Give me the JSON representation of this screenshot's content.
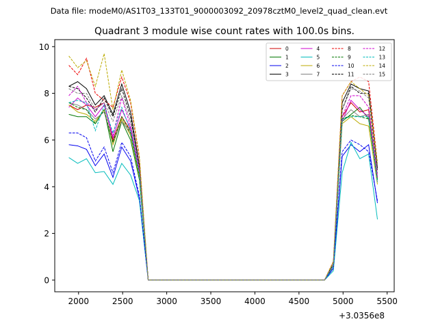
{
  "chart_data": {
    "type": "line",
    "suptitle": "Data file: modeM0/AS1T03_133T01_9000003092_20978cztM0_level2_quad_clean.evt",
    "title": "Quadrant 3 module wise count rates with 100.0s bins.",
    "xlabel": "",
    "ylabel": "",
    "x_offset_label": "+3.0356e8",
    "xlim": [
      1730,
      5580
    ],
    "ylim": [
      -0.5,
      10.3
    ],
    "xticks": [
      2000,
      2500,
      3000,
      3500,
      4000,
      4500,
      5000,
      5500
    ],
    "yticks": [
      0,
      2,
      4,
      6,
      8,
      10
    ],
    "legend_loc": "upper right",
    "legend_ncol": 4,
    "x": [
      1890,
      1990,
      2090,
      2190,
      2290,
      2390,
      2490,
      2590,
      2690,
      2790,
      2890,
      4790,
      4890,
      4990,
      5090,
      5190,
      5290,
      5390
    ],
    "series": [
      {
        "name": "0",
        "color": "#cc0000",
        "dash": "solid",
        "values": [
          7.5,
          7.3,
          7.5,
          7.4,
          7.6,
          6.0,
          7.0,
          6.4,
          4.5,
          0.0,
          0.0,
          0.0,
          0.6,
          7.0,
          7.6,
          7.2,
          7.3,
          4.4
        ]
      },
      {
        "name": "1",
        "color": "#007700",
        "dash": "solid",
        "values": [
          7.1,
          7.0,
          7.0,
          6.7,
          7.3,
          5.5,
          6.8,
          6.0,
          4.3,
          0.0,
          0.0,
          0.0,
          0.6,
          6.8,
          7.1,
          7.4,
          6.9,
          4.3
        ]
      },
      {
        "name": "2",
        "color": "#0000ee",
        "dash": "solid",
        "values": [
          5.8,
          5.75,
          5.6,
          4.9,
          5.4,
          4.4,
          5.7,
          5.1,
          3.5,
          0.0,
          0.0,
          0.0,
          0.5,
          5.3,
          5.8,
          5.5,
          5.8,
          3.3
        ]
      },
      {
        "name": "3",
        "color": "#000000",
        "dash": "solid",
        "values": [
          8.3,
          8.5,
          8.2,
          7.5,
          7.9,
          7.1,
          8.4,
          7.2,
          4.9,
          0.0,
          0.0,
          0.0,
          0.7,
          7.6,
          8.4,
          8.2,
          8.1,
          4.8
        ]
      },
      {
        "name": "4",
        "color": "#cc00cc",
        "dash": "solid",
        "values": [
          7.4,
          7.8,
          7.5,
          7.0,
          7.5,
          6.1,
          7.3,
          6.5,
          4.6,
          0.0,
          0.0,
          0.0,
          0.6,
          6.8,
          7.7,
          7.3,
          7.0,
          4.4
        ]
      },
      {
        "name": "5",
        "color": "#00bbbb",
        "dash": "solid",
        "values": [
          5.25,
          5.0,
          5.2,
          4.6,
          4.65,
          4.1,
          5.0,
          4.5,
          3.4,
          0.0,
          0.0,
          0.0,
          0.4,
          4.6,
          5.9,
          5.2,
          5.4,
          2.6
        ]
      },
      {
        "name": "6",
        "color": "#bbaa00",
        "dash": "solid",
        "values": [
          7.5,
          7.2,
          7.1,
          6.8,
          7.3,
          5.8,
          6.9,
          6.2,
          4.4,
          0.0,
          0.0,
          0.0,
          0.6,
          6.7,
          7.0,
          6.7,
          6.6,
          4.1
        ]
      },
      {
        "name": "7",
        "color": "#808080",
        "dash": "solid",
        "values": [
          7.6,
          7.5,
          7.3,
          6.9,
          7.2,
          5.9,
          6.8,
          6.3,
          4.5,
          0.0,
          0.0,
          0.0,
          0.6,
          6.9,
          7.3,
          7.0,
          7.1,
          4.2
        ]
      },
      {
        "name": "8",
        "color": "#ee0000",
        "dash": "dashed",
        "values": [
          9.2,
          8.8,
          9.5,
          8.0,
          7.7,
          7.4,
          8.7,
          7.6,
          5.2,
          0.0,
          0.0,
          0.0,
          0.8,
          7.9,
          8.5,
          8.7,
          8.5,
          5.0
        ]
      },
      {
        "name": "9",
        "color": "#007700",
        "dash": "dashed",
        "values": [
          7.6,
          7.4,
          7.3,
          6.7,
          7.3,
          5.9,
          7.0,
          6.3,
          4.5,
          0.0,
          0.0,
          0.0,
          0.6,
          6.9,
          7.05,
          7.0,
          6.9,
          4.3
        ]
      },
      {
        "name": "10",
        "color": "#0000ee",
        "dash": "dashed",
        "values": [
          6.3,
          6.3,
          6.1,
          5.1,
          5.7,
          4.6,
          5.9,
          5.3,
          3.6,
          0.0,
          0.0,
          0.0,
          0.5,
          5.5,
          6.0,
          5.8,
          5.5,
          3.4
        ]
      },
      {
        "name": "11",
        "color": "#000000",
        "dash": "dashed",
        "values": [
          8.3,
          8.2,
          7.8,
          7.2,
          7.8,
          7.0,
          8.2,
          7.0,
          4.8,
          0.0,
          0.0,
          0.0,
          0.7,
          7.3,
          8.3,
          8.0,
          8.0,
          4.7
        ]
      },
      {
        "name": "12",
        "color": "#cc00cc",
        "dash": "dashed",
        "values": [
          7.9,
          8.3,
          7.6,
          7.3,
          7.6,
          6.2,
          7.8,
          6.6,
          4.7,
          0.0,
          0.0,
          0.0,
          0.6,
          7.0,
          7.9,
          7.9,
          7.4,
          4.5
        ]
      },
      {
        "name": "13",
        "color": "#00bbbb",
        "dash": "dashed",
        "values": [
          7.6,
          7.7,
          7.6,
          6.4,
          7.5,
          6.3,
          7.4,
          6.4,
          4.5,
          0.0,
          0.0,
          0.0,
          0.6,
          6.9,
          7.0,
          7.0,
          7.0,
          4.2
        ]
      },
      {
        "name": "14",
        "color": "#bbaa00",
        "dash": "dashed",
        "values": [
          9.6,
          9.1,
          9.4,
          8.3,
          9.7,
          7.3,
          9.0,
          7.7,
          5.3,
          0.0,
          0.0,
          0.0,
          0.8,
          7.9,
          8.5,
          8.2,
          7.9,
          5.0
        ]
      },
      {
        "name": "15",
        "color": "#808080",
        "dash": "dashed",
        "values": [
          8.2,
          8.0,
          8.0,
          7.3,
          7.6,
          6.8,
          7.9,
          6.8,
          4.8,
          0.0,
          0.0,
          0.0,
          0.7,
          7.3,
          8.2,
          8.1,
          7.8,
          4.6
        ]
      }
    ]
  }
}
